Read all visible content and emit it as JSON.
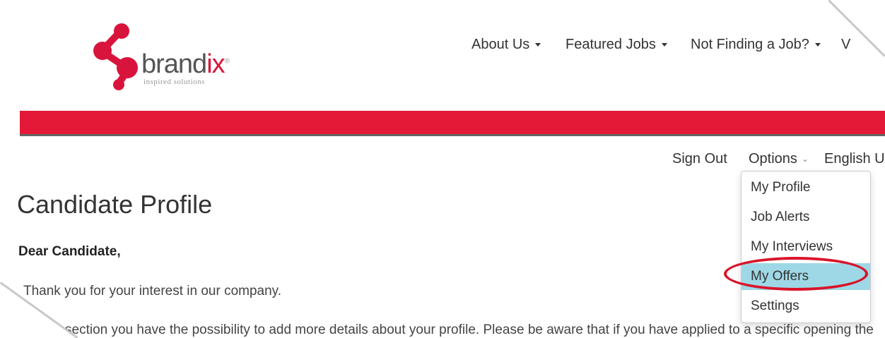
{
  "brand": {
    "name_main": "brand",
    "name_accent": "ix",
    "registered": "®",
    "tagline": "inspired solutions",
    "accent_color": "#d9143c"
  },
  "topnav": {
    "items": [
      {
        "label": "About Us"
      },
      {
        "label": "Featured Jobs"
      },
      {
        "label": "Not Finding a Job?"
      },
      {
        "label": "V"
      }
    ]
  },
  "banner": {
    "color": "#e41938"
  },
  "account_nav": {
    "sign_out": "Sign Out",
    "options": "Options",
    "language": "English U"
  },
  "options_menu": {
    "items": [
      {
        "label": "My Profile"
      },
      {
        "label": "Job Alerts"
      },
      {
        "label": "My Interviews"
      },
      {
        "label": "My Offers",
        "highlighted": true
      },
      {
        "label": "Settings"
      }
    ],
    "highlight_color": "#9ed8e6",
    "annotation_ring_color": "#d9142a"
  },
  "content": {
    "title": "Candidate Profile",
    "greeting": "Dear Candidate,",
    "paragraph1": "Thank you for your interest in our company.",
    "paragraph2": "section you have the possibility to add more details about your profile. Please be aware that if you have applied to a specific opening the"
  }
}
